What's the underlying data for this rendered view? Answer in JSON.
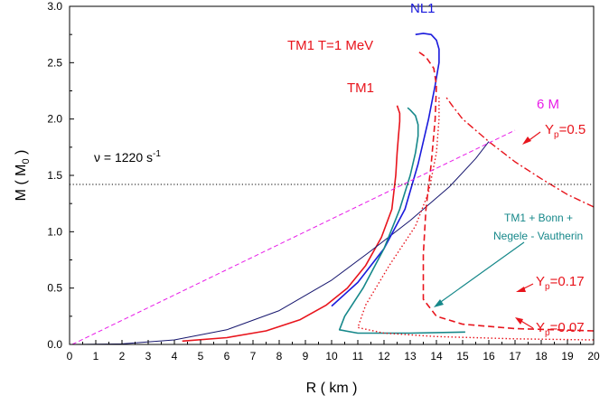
{
  "chart_data": {
    "type": "line",
    "xlabel": "R ( km )",
    "ylabel": "M ( M",
    "ylabel_sub": "0",
    "ylabel_end": " )",
    "xlim": [
      0,
      20
    ],
    "ylim": [
      0,
      3.0
    ],
    "x_ticks": [
      "0",
      "1",
      "2",
      "3",
      "4",
      "5",
      "6",
      "7",
      "8",
      "9",
      "10",
      "11",
      "12",
      "13",
      "14",
      "15",
      "16",
      "17",
      "18",
      "19",
      "20"
    ],
    "y_ticks": [
      "0.0",
      "0.5",
      "1.0",
      "1.5",
      "2.0",
      "2.5",
      "3.0"
    ],
    "grid": false,
    "colors": {
      "tm1": "#e8141c",
      "nl1": "#1a1adc",
      "bonn": "#16888a",
      "navy": "#16166e",
      "line6m": "#e81ce8",
      "ref": "#000000"
    },
    "annotations": {
      "nl1": "NL1",
      "tm1_t1": "TM1 T=1 MeV",
      "tm1": "TM1",
      "six_m": "6 M",
      "nu_main": "ν = 1220 s",
      "nu_sup": "-1",
      "yp05_y": "Y",
      "yp05_sub": "p",
      "yp05_val": "=0.5",
      "yp017_y": "Y",
      "yp017_sub": "p",
      "yp017_val": "=0.17",
      "yp007_y": "Y",
      "yp007_sub": "p",
      "yp007_val": "=0.07",
      "bonn_line1": "TM1 + Bonn +",
      "bonn_line2": "Negele - Vautherin"
    },
    "series": [
      {
        "key": "tm1",
        "color_key": "tm1",
        "dash": "",
        "width": 1.6,
        "x": [
          4.3,
          6.0,
          7.5,
          8.8,
          9.8,
          10.6,
          11.3,
          11.9,
          12.3,
          12.45,
          12.5,
          12.55,
          12.6,
          12.6,
          12.5
        ],
        "y": [
          0.03,
          0.06,
          0.12,
          0.22,
          0.35,
          0.5,
          0.7,
          0.95,
          1.2,
          1.5,
          1.7,
          1.85,
          1.98,
          2.05,
          2.12
        ]
      },
      {
        "key": "navy",
        "color_key": "navy",
        "dash": "",
        "width": 1.0,
        "x": [
          0.1,
          2.0,
          4.0,
          6.0,
          8.0,
          10.0,
          11.5,
          13.0,
          14.5,
          15.5,
          16.0
        ],
        "y": [
          0.0,
          0.005,
          0.04,
          0.13,
          0.3,
          0.57,
          0.83,
          1.1,
          1.4,
          1.65,
          1.8
        ]
      },
      {
        "key": "nl1",
        "color_key": "nl1",
        "dash": "",
        "width": 1.6,
        "x": [
          10.0,
          11.0,
          12.0,
          12.8,
          13.3,
          13.7,
          13.95,
          14.1,
          14.1,
          14.0,
          13.8,
          13.5,
          13.2
        ],
        "y": [
          0.34,
          0.55,
          0.85,
          1.2,
          1.6,
          2.0,
          2.3,
          2.5,
          2.62,
          2.7,
          2.75,
          2.76,
          2.75
        ]
      },
      {
        "key": "bonn",
        "color_key": "bonn",
        "dash": "",
        "width": 1.6,
        "x": [
          15.1,
          13.0,
          11.0,
          10.3,
          10.5,
          11.2,
          12.0,
          12.6,
          13.0,
          13.2,
          13.3,
          13.3,
          13.2,
          13.0,
          12.9
        ],
        "y": [
          0.11,
          0.1,
          0.1,
          0.13,
          0.25,
          0.5,
          0.85,
          1.2,
          1.5,
          1.7,
          1.85,
          1.95,
          2.03,
          2.08,
          2.1
        ]
      },
      {
        "key": "tm1_t1",
        "color_key": "tm1",
        "dash": "7 4",
        "width": 1.6,
        "x": [
          20.0,
          17.0,
          15.0,
          14.0,
          13.5,
          13.5,
          13.6,
          13.8,
          13.95,
          14.0,
          13.9,
          13.6,
          13.3
        ],
        "y": [
          0.12,
          0.14,
          0.18,
          0.25,
          0.4,
          0.8,
          1.2,
          1.6,
          2.0,
          2.3,
          2.45,
          2.55,
          2.6
        ]
      },
      {
        "key": "yp07",
        "color_key": "tm1",
        "dash": "1.5 2.5",
        "width": 1.4,
        "x": [
          20.0,
          17.0,
          14.0,
          12.0,
          11.0,
          11.3,
          12.2,
          13.2,
          13.7,
          14.0,
          14.1,
          14.1
        ],
        "y": [
          0.04,
          0.05,
          0.07,
          0.1,
          0.15,
          0.35,
          0.7,
          1.05,
          1.35,
          1.7,
          2.0,
          2.2
        ]
      },
      {
        "key": "yp05",
        "color_key": "tm1",
        "dash": "8 3 2 3",
        "width": 1.4,
        "x": [
          20.0,
          19.0,
          18.0,
          17.0,
          16.0,
          15.0,
          14.6,
          14.35
        ],
        "y": [
          1.22,
          1.33,
          1.47,
          1.62,
          1.8,
          2.0,
          2.12,
          2.2
        ]
      },
      {
        "key": "line6m",
        "color_key": "line6m",
        "dash": "5 3",
        "width": 1.0,
        "x": [
          0.1,
          17.0
        ],
        "y": [
          0.0,
          1.9
        ]
      },
      {
        "key": "ref",
        "color_key": "ref",
        "dash": "1.2 2.4",
        "width": 1.0,
        "x": [
          0.0,
          20.0
        ],
        "y": [
          1.42,
          1.42
        ]
      }
    ]
  }
}
